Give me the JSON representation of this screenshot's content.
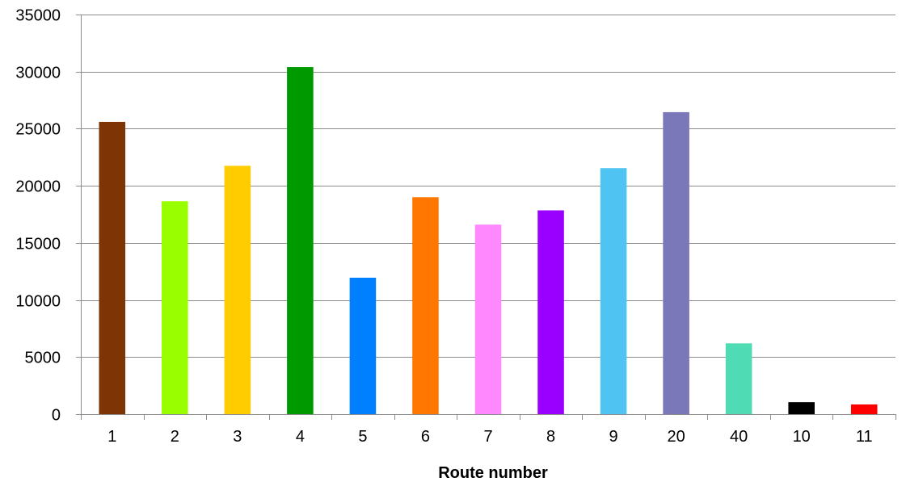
{
  "chart_data": {
    "type": "bar",
    "title": "",
    "xlabel": "Route number",
    "ylabel": "",
    "categories": [
      "1",
      "2",
      "3",
      "4",
      "5",
      "6",
      "7",
      "8",
      "9",
      "20",
      "40",
      "10",
      "11"
    ],
    "values": [
      25600,
      18650,
      21750,
      30400,
      11950,
      19000,
      16600,
      17850,
      21550,
      26450,
      6200,
      1050,
      850
    ],
    "bar_colors": [
      "#7f3406",
      "#99ff00",
      "#ffcc00",
      "#009900",
      "#0080ff",
      "#ff7700",
      "#ff88ff",
      "#9900ff",
      "#4fc4f2",
      "#7a78b8",
      "#4fdcb4",
      "#000000",
      "#ff0000"
    ],
    "ylim": [
      0,
      35000
    ],
    "yticks": [
      0,
      5000,
      10000,
      15000,
      20000,
      25000,
      30000,
      35000
    ],
    "grid": true,
    "legend": "none"
  }
}
